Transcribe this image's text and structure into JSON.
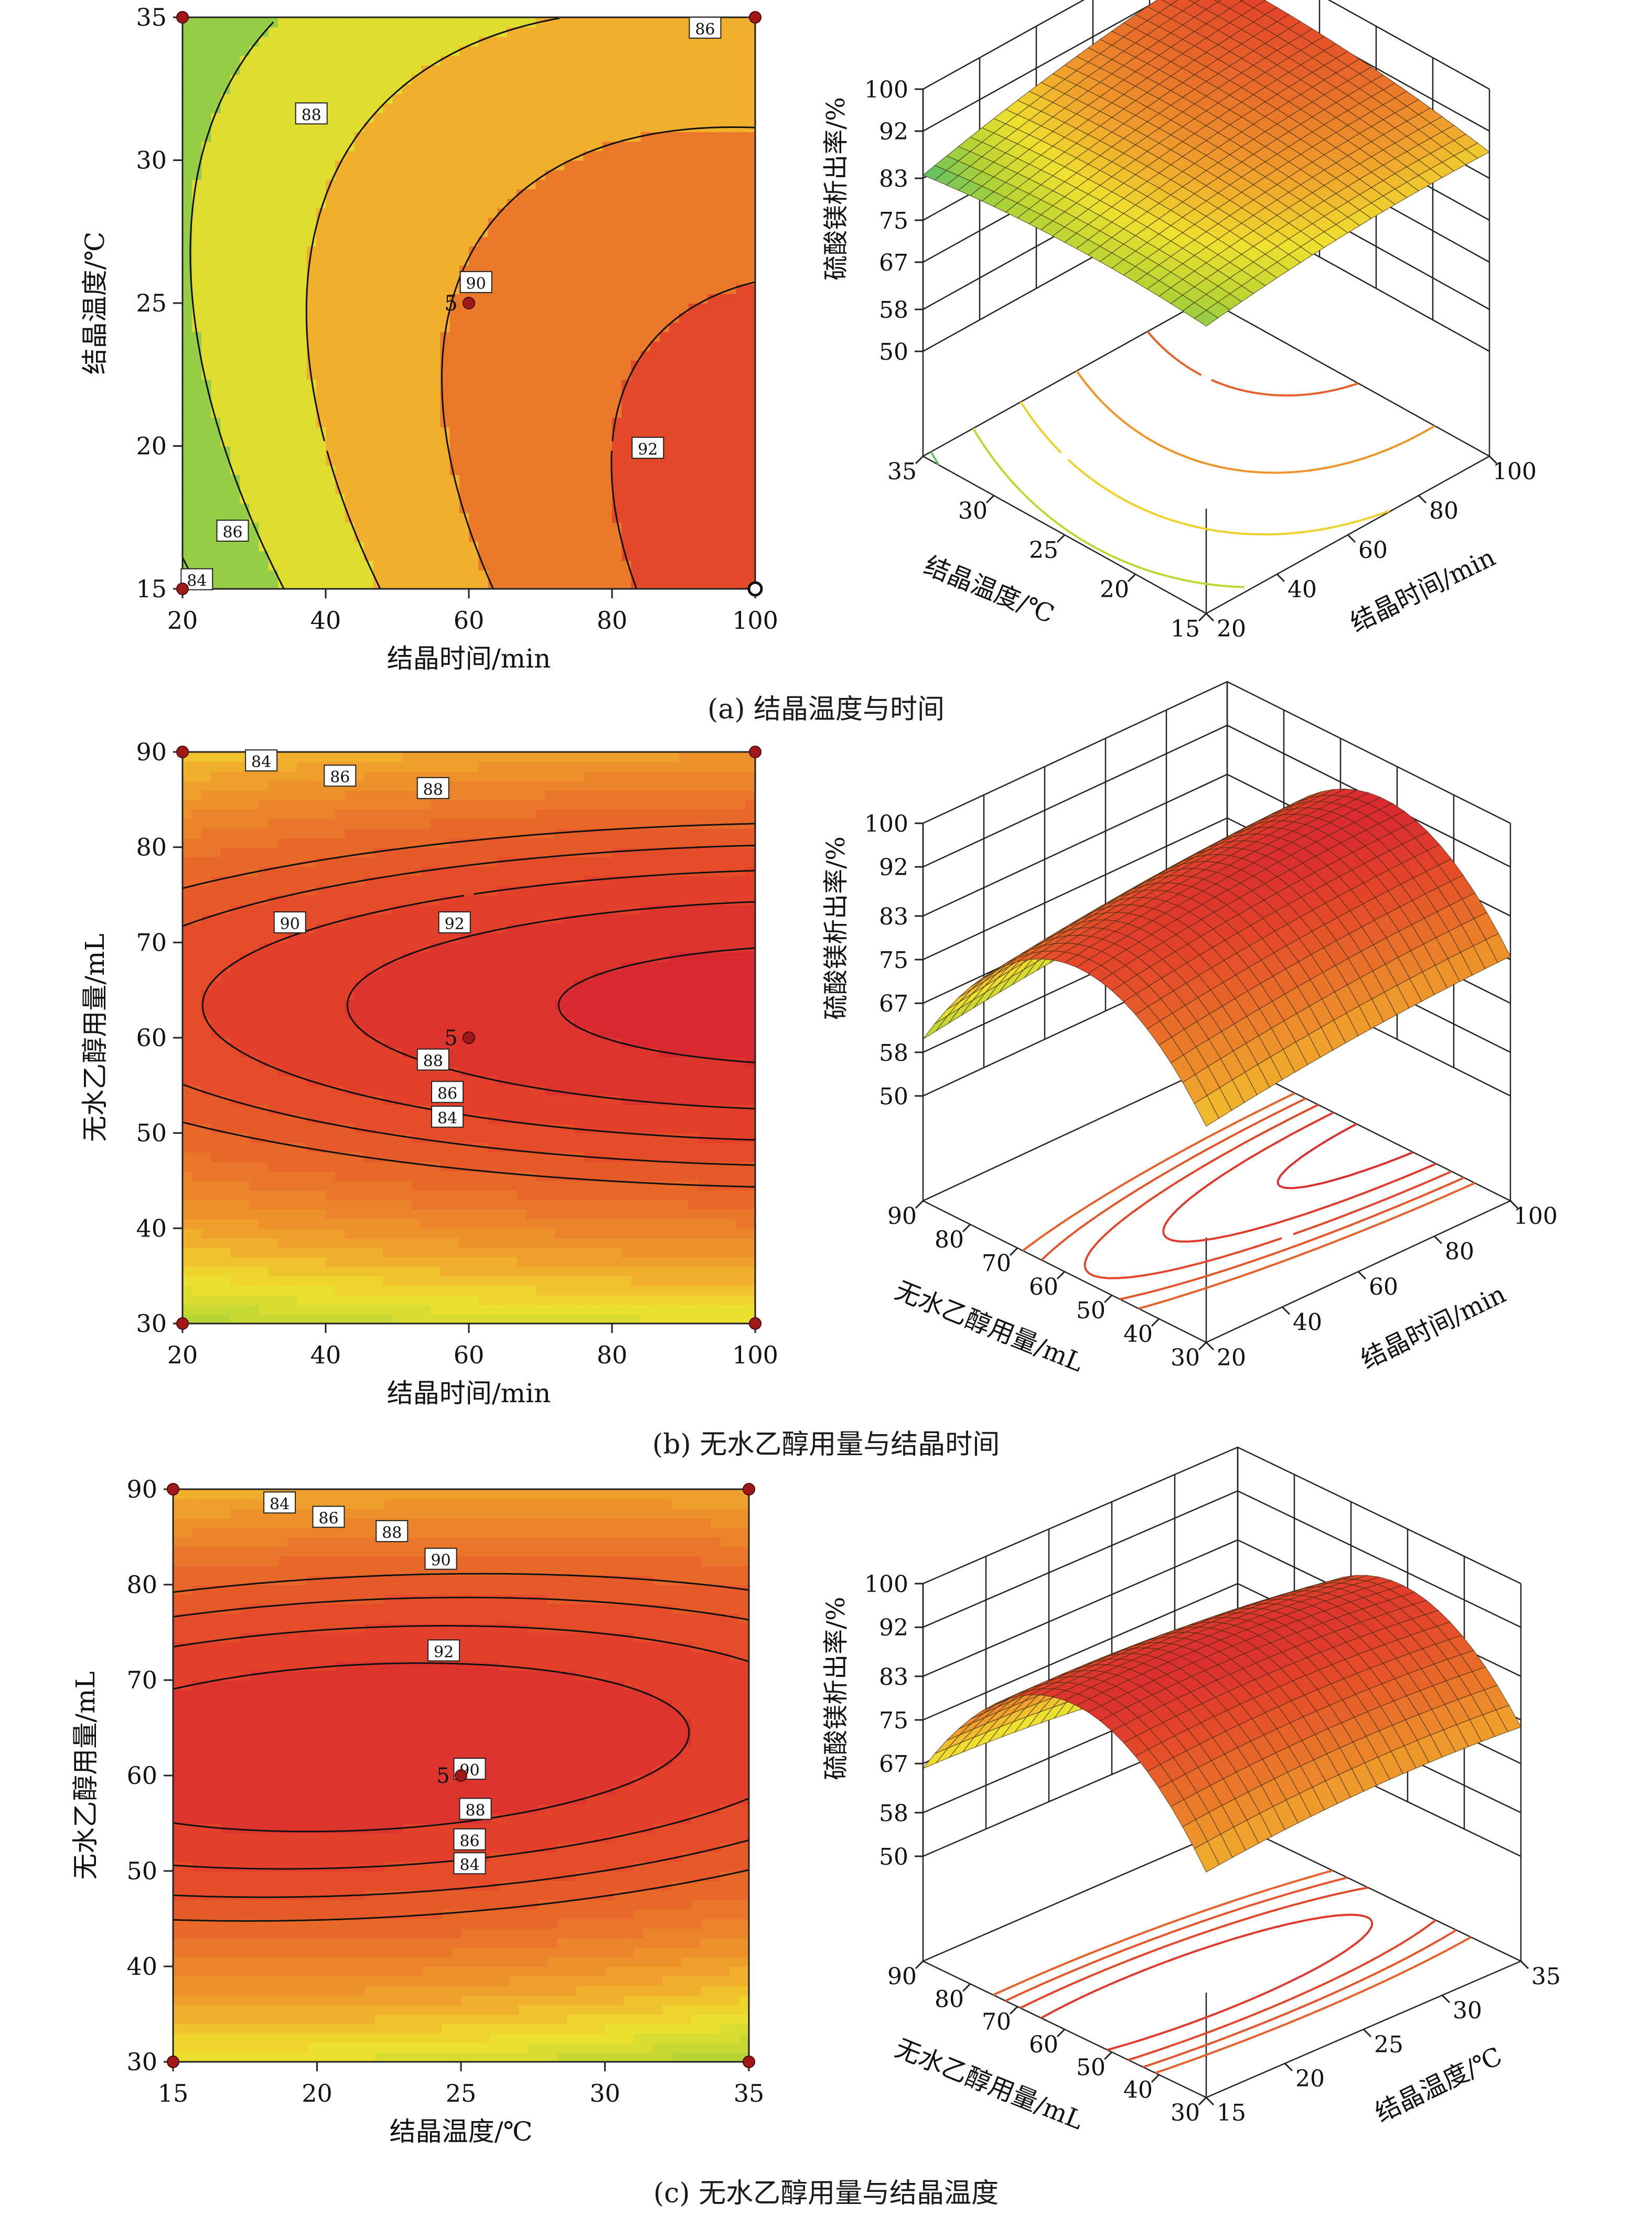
{
  "colors": {
    "scale": [
      "#2a4aa8",
      "#3aa3d8",
      "#5cc069",
      "#b3d334",
      "#efe12f",
      "#f0a42c",
      "#e9742a",
      "#e4452a",
      "#d41e33"
    ],
    "contour_line": "#111111",
    "design_point": "#a01818",
    "grid": "#222222"
  },
  "chart_data": [
    {
      "id": "a",
      "type": "contour",
      "caption": "(a) 结晶温度与时间",
      "xlabel": "结晶时间/min",
      "ylabel": "结晶温度/℃",
      "xlim": [
        20,
        100
      ],
      "ylim": [
        15,
        35
      ],
      "xticks": [
        20,
        40,
        60,
        80,
        100
      ],
      "yticks": [
        15,
        20,
        25,
        30,
        35
      ],
      "contour_levels": [
        84,
        86,
        88,
        90,
        92
      ],
      "contour_labels": [
        {
          "text": "84",
          "x": 22,
          "y": 15.3
        },
        {
          "text": "86",
          "x": 27,
          "y": 17.0
        },
        {
          "text": "88",
          "x": 38,
          "y": 31.6
        },
        {
          "text": "90",
          "x": 61,
          "y": 25.7
        },
        {
          "text": "92",
          "x": 85,
          "y": 19.9
        },
        {
          "text": "86",
          "x": 93,
          "y": 34.6
        }
      ],
      "center_point": {
        "x": 60,
        "y": 25,
        "label": "5"
      },
      "design_points": [
        [
          20,
          15
        ],
        [
          20,
          35
        ],
        [
          100,
          35
        ]
      ],
      "open_points": [
        [
          100,
          15
        ]
      ],
      "surface": {
        "zlabel": "硫酸镁析出率/%",
        "zticks": [
          50,
          58,
          67,
          75,
          83,
          92,
          100
        ],
        "xlabel": "结晶温度/℃",
        "xticks": [
          35,
          30,
          25,
          20,
          15
        ],
        "ylabel": "结晶时间/min",
        "yticks": [
          20,
          40,
          60,
          80,
          100
        ]
      }
    },
    {
      "id": "b",
      "type": "contour",
      "caption": "(b) 无水乙醇用量与结晶时间",
      "xlabel": "结晶时间/min",
      "ylabel": "无水乙醇用量/mL",
      "xlim": [
        20,
        100
      ],
      "ylim": [
        30,
        90
      ],
      "xticks": [
        20,
        40,
        60,
        80,
        100
      ],
      "yticks": [
        30,
        40,
        50,
        60,
        70,
        80,
        90
      ],
      "contour_levels": [
        84,
        86,
        88,
        90,
        92
      ],
      "contour_labels": [
        {
          "text": "84",
          "x": 31,
          "y": 89.0
        },
        {
          "text": "86",
          "x": 42,
          "y": 87.4
        },
        {
          "text": "88",
          "x": 55,
          "y": 86.1
        },
        {
          "text": "90",
          "x": 35,
          "y": 72.0
        },
        {
          "text": "92",
          "x": 58,
          "y": 72.0
        },
        {
          "text": "88",
          "x": 55,
          "y": 57.6
        },
        {
          "text": "86",
          "x": 57,
          "y": 54.2
        },
        {
          "text": "84",
          "x": 57,
          "y": 51.6
        }
      ],
      "center_point": {
        "x": 60,
        "y": 60,
        "label": "5"
      },
      "design_points": [
        [
          20,
          30
        ],
        [
          20,
          90
        ],
        [
          100,
          30
        ],
        [
          100,
          90
        ]
      ],
      "open_points": [],
      "surface": {
        "zlabel": "硫酸镁析出率/%",
        "zticks": [
          50,
          58,
          67,
          75,
          83,
          92,
          100
        ],
        "xlabel": "无水乙醇用量/mL",
        "xticks": [
          90,
          80,
          70,
          60,
          50,
          40,
          30
        ],
        "ylabel": "结晶时间/min",
        "yticks": [
          20,
          40,
          60,
          80,
          100
        ]
      }
    },
    {
      "id": "c",
      "type": "contour",
      "caption": "(c) 无水乙醇用量与结晶温度",
      "xlabel": "结晶温度/℃",
      "ylabel": "无水乙醇用量/mL",
      "xlim": [
        15,
        35
      ],
      "ylim": [
        30,
        90
      ],
      "xticks": [
        15,
        20,
        25,
        30,
        35
      ],
      "yticks": [
        30,
        40,
        50,
        60,
        70,
        80,
        90
      ],
      "contour_levels": [
        84,
        86,
        88,
        90,
        92
      ],
      "contour_labels": [
        {
          "text": "84",
          "x": 18.7,
          "y": 88.5
        },
        {
          "text": "86",
          "x": 20.4,
          "y": 87.0
        },
        {
          "text": "88",
          "x": 22.6,
          "y": 85.5
        },
        {
          "text": "90",
          "x": 24.3,
          "y": 82.6
        },
        {
          "text": "92",
          "x": 24.4,
          "y": 73.0
        },
        {
          "text": "90",
          "x": 25.3,
          "y": 60.6
        },
        {
          "text": "88",
          "x": 25.5,
          "y": 56.4
        },
        {
          "text": "86",
          "x": 25.3,
          "y": 53.2
        },
        {
          "text": "84",
          "x": 25.3,
          "y": 50.7
        }
      ],
      "center_point": {
        "x": 25,
        "y": 60,
        "label": "5"
      },
      "design_points": [
        [
          15,
          30
        ],
        [
          15,
          90
        ],
        [
          35,
          30
        ],
        [
          35,
          90
        ]
      ],
      "open_points": [],
      "surface": {
        "zlabel": "硫酸镁析出率/%",
        "zticks": [
          50,
          58,
          67,
          75,
          83,
          92,
          100
        ],
        "xlabel": "无水乙醇用量/mL",
        "xticks": [
          90,
          80,
          70,
          60,
          50,
          40,
          30
        ],
        "ylabel": "结晶温度/℃",
        "yticks": [
          15,
          20,
          25,
          30,
          35
        ]
      }
    }
  ]
}
